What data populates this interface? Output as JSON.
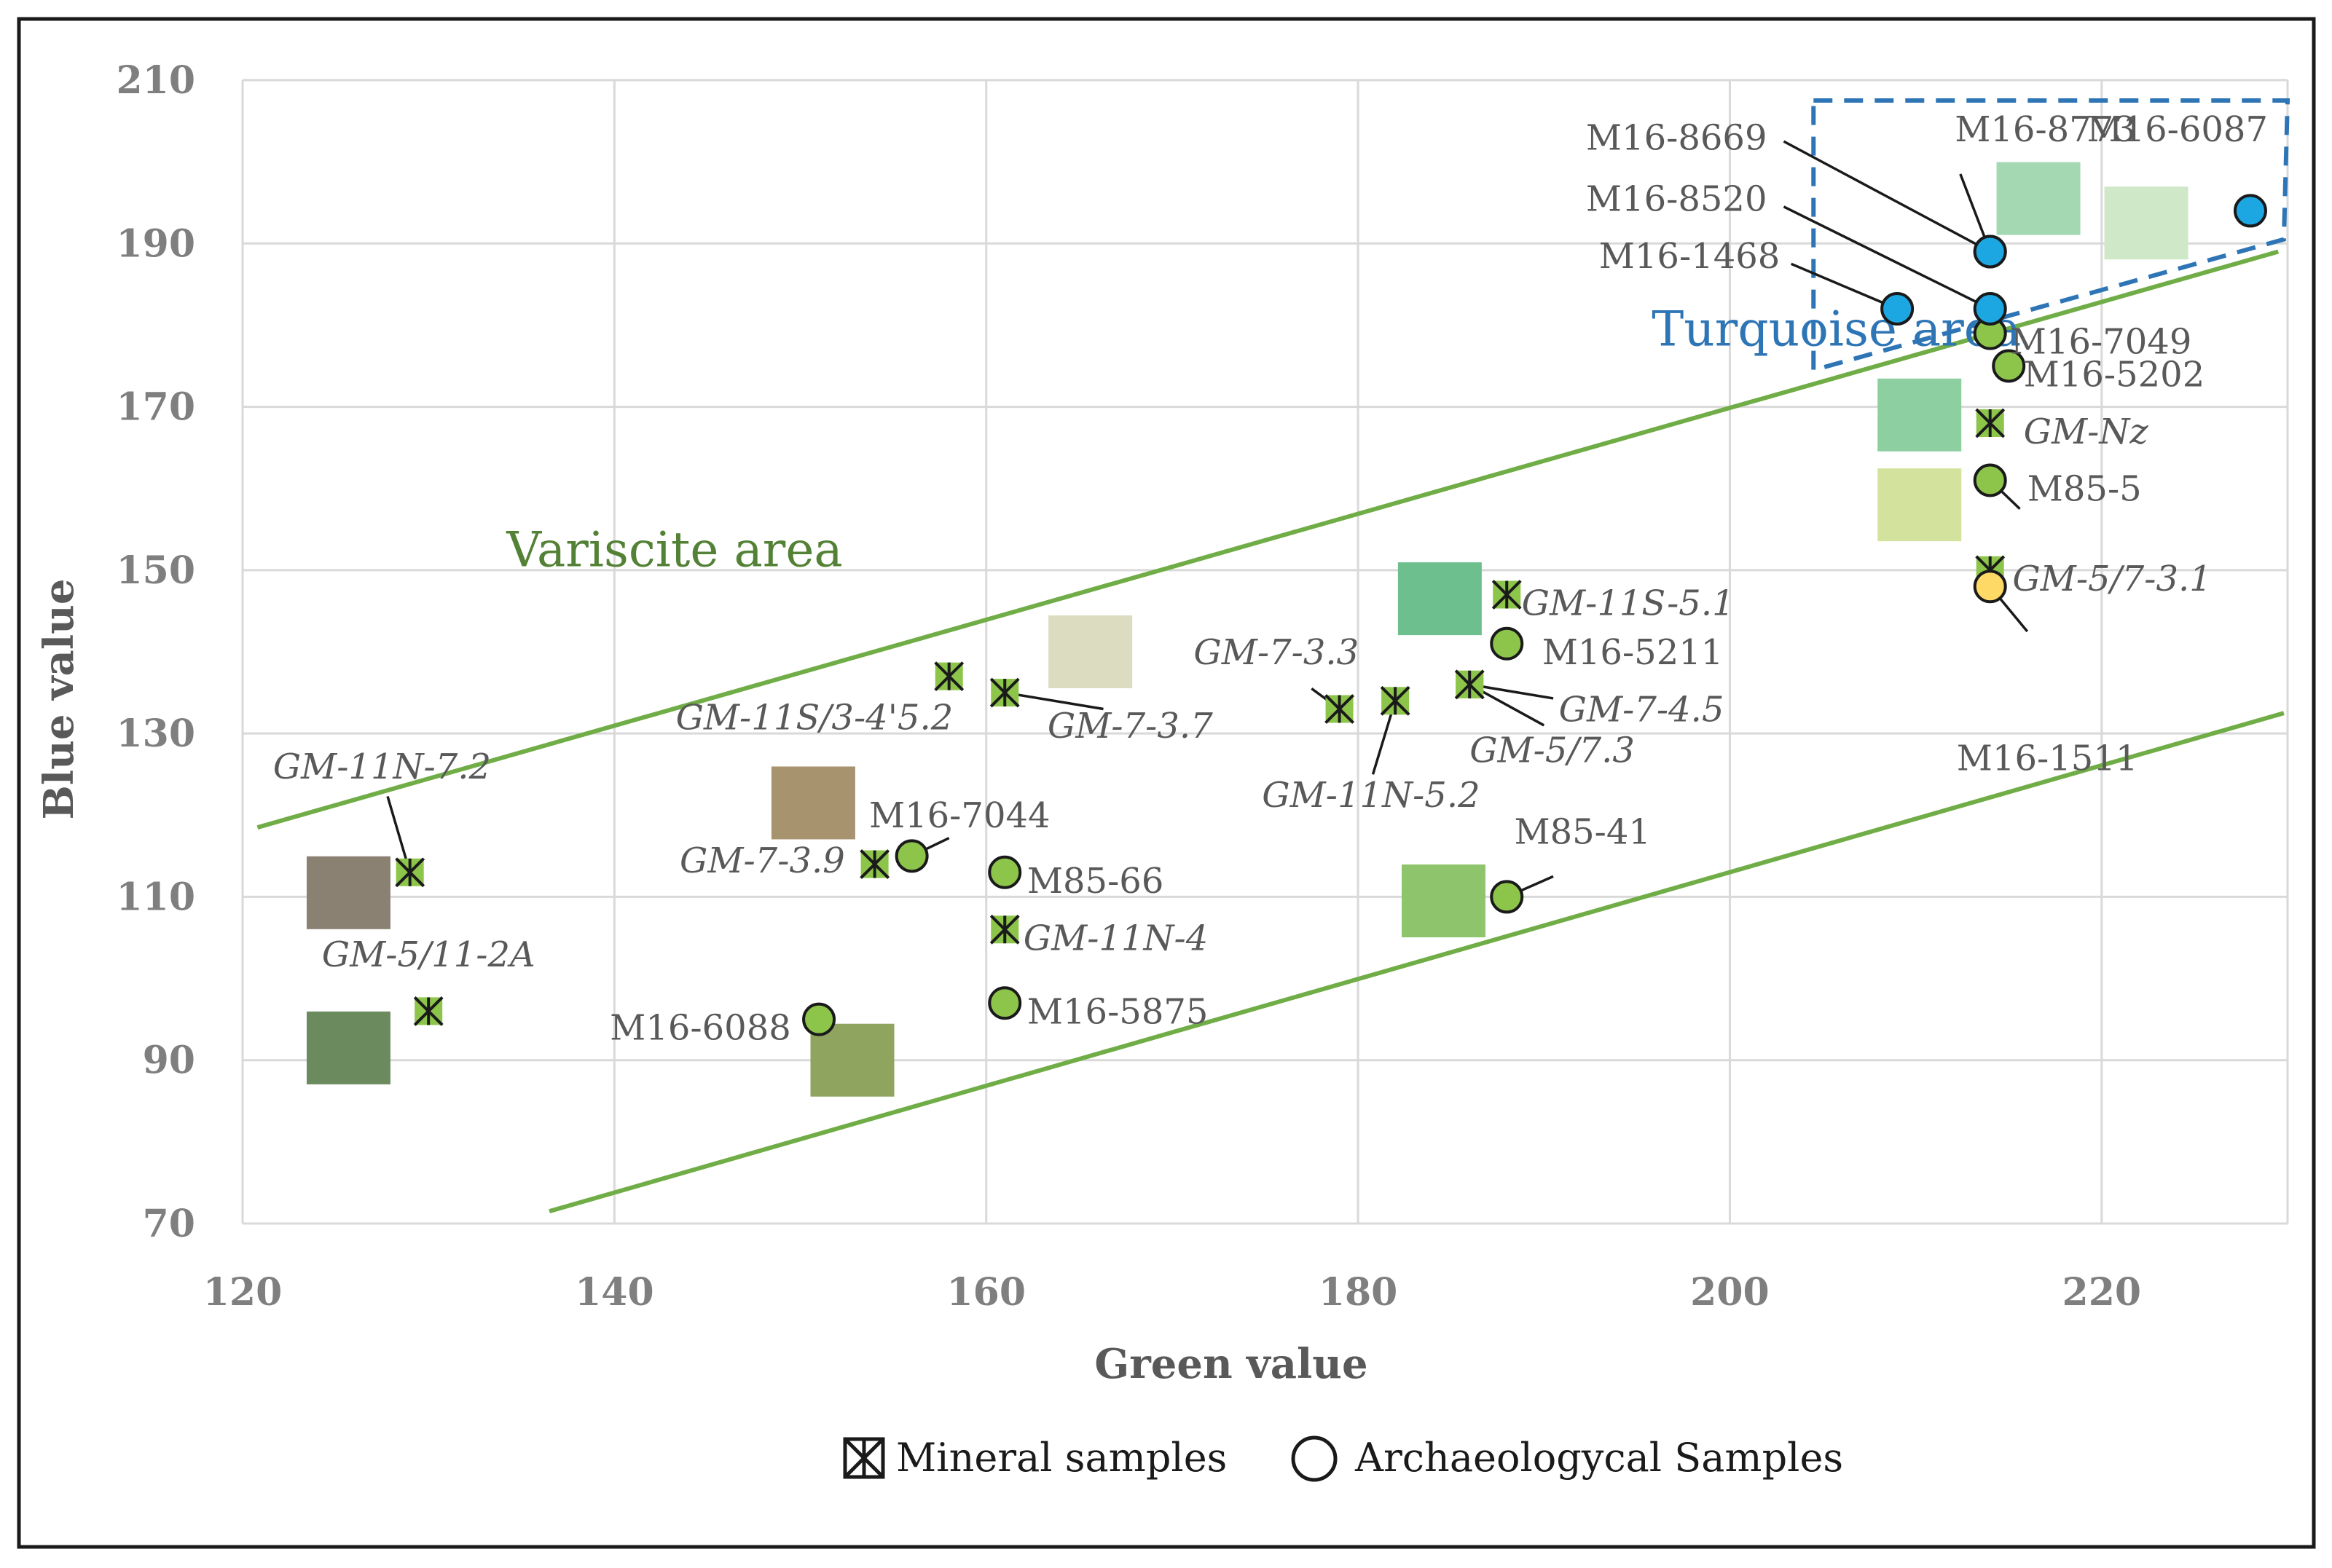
{
  "chart_data": {
    "type": "scatter",
    "xlabel": "Green value",
    "ylabel": "Blue value",
    "xlim": [
      120,
      230
    ],
    "ylim": [
      70,
      210
    ],
    "x_ticks": [
      "120",
      "140",
      "160",
      "180",
      "200",
      "220"
    ],
    "y_ticks": [
      "70",
      "90",
      "110",
      "130",
      "150",
      "170",
      "190",
      "210"
    ],
    "grid": true,
    "legend_position": "bottom",
    "legend": [
      {
        "symbol": "mineral",
        "label": "Mineral samples"
      },
      {
        "symbol": "archaeological",
        "label": "Archaeologycal Samples"
      }
    ],
    "areas": [
      {
        "label": "Variscite area",
        "color": "#70ad47",
        "upper_line": [
          [
            120.8,
            118.5
          ],
          [
            229.5,
            189
          ]
        ],
        "lower_line": [
          [
            136.5,
            71.5
          ],
          [
            229.8,
            132.5
          ]
        ]
      },
      {
        "label": "Turquoise area",
        "color": "#2e75b6",
        "polygon": [
          [
            204.5,
            207.5
          ],
          [
            230,
            207.5
          ],
          [
            229.8,
            190.5
          ],
          [
            204.5,
            174.5
          ]
        ]
      }
    ],
    "series": [
      {
        "name": "Mineral samples",
        "points": [
          {
            "label": "GM-11N-7.2",
            "x": 129,
            "y": 113
          },
          {
            "label": "GM-5/11-2A",
            "x": 130,
            "y": 96
          },
          {
            "label": "GM-7-3.9",
            "x": 154,
            "y": 114
          },
          {
            "label": "GM-11S/3-4'5.2",
            "x": 158,
            "y": 137
          },
          {
            "label": "GM-7-3.7",
            "x": 161,
            "y": 135
          },
          {
            "label": "GM-11N-4",
            "x": 161,
            "y": 106
          },
          {
            "label": "GM-7-3.3",
            "x": 179,
            "y": 133
          },
          {
            "label": "GM-11N-5.2",
            "x": 182,
            "y": 134
          },
          {
            "label": "GM-7-4.5",
            "x": 186,
            "y": 136
          },
          {
            "label": "GM-5/7.3",
            "x": 186,
            "y": 136
          },
          {
            "label": "GM-11S-5.1",
            "x": 188,
            "y": 147
          },
          {
            "label": "GM-Nz",
            "x": 214,
            "y": 168
          },
          {
            "label": "GM-5/7-3.1",
            "x": 214,
            "y": 150
          }
        ]
      },
      {
        "name": "Archaeologycal Samples",
        "points": [
          {
            "label": "M16-7044",
            "x": 156,
            "y": 115,
            "color": "#8dc54b"
          },
          {
            "label": "M85-66",
            "x": 161,
            "y": 113,
            "color": "#8dc54b"
          },
          {
            "label": "M16-5875",
            "x": 161,
            "y": 97,
            "color": "#8dc54b"
          },
          {
            "label": "M16-6088",
            "x": 151,
            "y": 95,
            "color": "#8dc54b"
          },
          {
            "label": "M16-5211",
            "x": 188,
            "y": 141,
            "color": "#8dc54b"
          },
          {
            "label": "M85-41",
            "x": 188,
            "y": 110,
            "color": "#8dc54b"
          },
          {
            "label": "M16-7049",
            "x": 214,
            "y": 179,
            "color": "#8dc54b"
          },
          {
            "label": "M16-5202",
            "x": 215,
            "y": 175,
            "color": "#8dc54b"
          },
          {
            "label": "M85-5",
            "x": 214,
            "y": 161,
            "color": "#8dc54b"
          },
          {
            "label": "M16-1511",
            "x": 214,
            "y": 148,
            "color": "#ffd966"
          },
          {
            "label": "M16-8669",
            "x": 214,
            "y": 189,
            "color": "#1ca7e2"
          },
          {
            "label": "M16-8773",
            "x": 214,
            "y": 189,
            "color": "#1ca7e2"
          },
          {
            "label": "M16-8520",
            "x": 214,
            "y": 182,
            "color": "#1ca7e2"
          },
          {
            "label": "M16-1468",
            "x": 209,
            "y": 182,
            "color": "#1ca7e2"
          },
          {
            "label": "M16-6087",
            "x": 228,
            "y": 194,
            "color": "#1ca7e2"
          }
        ]
      }
    ],
    "swatches": [
      {
        "x": 125.7,
        "y": 110.5,
        "color": "#8a8173"
      },
      {
        "x": 125.7,
        "y": 91.5,
        "color": "#6b8a5e"
      },
      {
        "x": 150.7,
        "y": 121.5,
        "color": "#a8936f"
      },
      {
        "x": 152.8,
        "y": 90,
        "color": "#8ea45f"
      },
      {
        "x": 165.6,
        "y": 140,
        "color": "#dcdcc0"
      },
      {
        "x": 184.4,
        "y": 146.5,
        "color": "#6dbf8e"
      },
      {
        "x": 184.6,
        "y": 109.5,
        "color": "#8ec56c"
      },
      {
        "x": 210.2,
        "y": 169,
        "color": "#8ecfa2"
      },
      {
        "x": 210.2,
        "y": 158,
        "color": "#d3e39e"
      },
      {
        "x": 216.6,
        "y": 195.5,
        "color": "#a3d8b3"
      },
      {
        "x": 222.4,
        "y": 192.5,
        "color": "#cfe8c8"
      }
    ]
  }
}
